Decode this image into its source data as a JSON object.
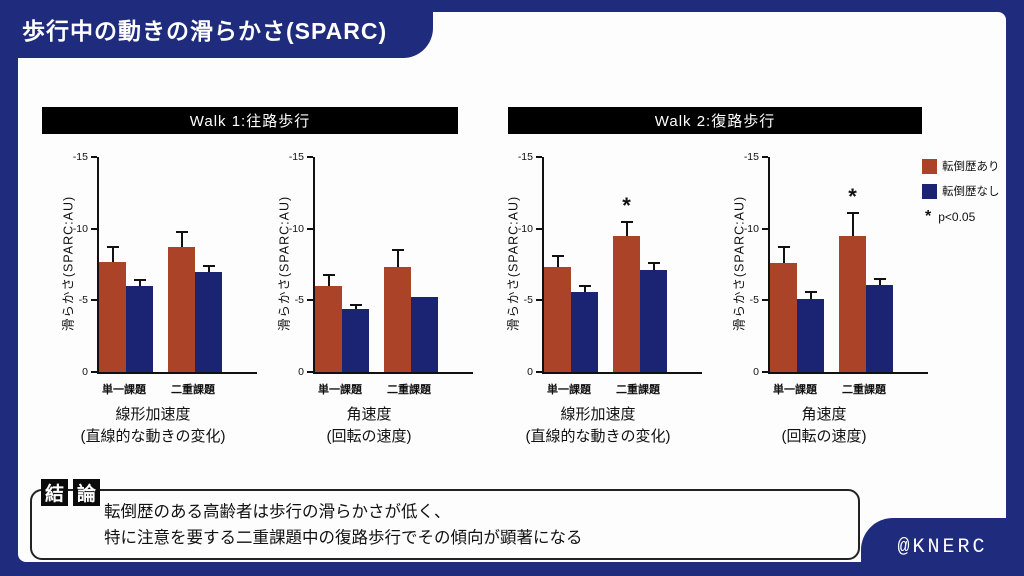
{
  "slide_title": "歩行中の動きの滑らかさ(SPARC)",
  "watermark": "@KNERC",
  "sections": [
    {
      "header": "Walk 1:往路歩行"
    },
    {
      "header": "Walk 2:復路歩行"
    }
  ],
  "legend": {
    "items": [
      {
        "label": "転倒歴あり",
        "color": "#AB4328"
      },
      {
        "label": "転倒歴なし",
        "color": "#1A2472"
      }
    ],
    "sig_symbol": "*",
    "sig_label": "p<0.05"
  },
  "conclusion": {
    "badge_chars": [
      "結",
      "論"
    ],
    "lines": [
      "転倒歴のある高齢者は歩行の滑らかさが低く、",
      "特に注意を要する二重課題中の復路歩行でその傾向が顕著になる"
    ]
  },
  "colors": {
    "frame_navy": "#1F2B7C",
    "bar_red": "#AB4328",
    "bar_blue": "#1A2472",
    "header_black": "#000000"
  },
  "chart_data": [
    {
      "type": "bar",
      "section": "Walk 1:往路歩行",
      "title": "線形加速度",
      "subtitle": "(直線的な動きの変化)",
      "ylabel": "滑らかさ(SPARC:AU)",
      "ylim": [
        0,
        -15
      ],
      "yticks": [
        0,
        -5,
        -10,
        -15
      ],
      "categories": [
        "単一課題",
        "二重課題"
      ],
      "series": [
        {
          "name": "転倒歴あり",
          "values": [
            -7.7,
            -8.7
          ],
          "errors": [
            1.0,
            1.1
          ]
        },
        {
          "name": "転倒歴なし",
          "values": [
            -6.0,
            -7.0
          ],
          "errors": [
            0.45,
            0.4
          ]
        }
      ],
      "significance": [
        "",
        ""
      ]
    },
    {
      "type": "bar",
      "section": "Walk 1:往路歩行",
      "title": "角速度",
      "subtitle": "(回転の速度)",
      "ylabel": "滑らかさ(SPARC:AU)",
      "ylim": [
        0,
        -15
      ],
      "yticks": [
        0,
        -5,
        -10,
        -15
      ],
      "categories": [
        "単一課題",
        "二重課題"
      ],
      "series": [
        {
          "name": "転倒歴あり",
          "values": [
            -6.0,
            -7.3
          ],
          "errors": [
            0.8,
            1.2
          ]
        },
        {
          "name": "転倒歴なし",
          "values": [
            -4.4,
            -5.2
          ],
          "errors": [
            0.3,
            0
          ]
        }
      ],
      "significance": [
        "",
        ""
      ]
    },
    {
      "type": "bar",
      "section": "Walk 2:復路歩行",
      "title": "線形加速度",
      "subtitle": "(直線的な動きの変化)",
      "ylabel": "滑らかさ(SPARC:AU)",
      "ylim": [
        0,
        -15
      ],
      "yticks": [
        0,
        -5,
        -10,
        -15
      ],
      "categories": [
        "単一課題",
        "二重課題"
      ],
      "series": [
        {
          "name": "転倒歴あり",
          "values": [
            -7.3,
            -9.5
          ],
          "errors": [
            0.8,
            1.0
          ]
        },
        {
          "name": "転倒歴なし",
          "values": [
            -5.6,
            -7.1
          ],
          "errors": [
            0.4,
            0.5
          ]
        }
      ],
      "significance": [
        "",
        "*"
      ]
    },
    {
      "type": "bar",
      "section": "Walk 2:復路歩行",
      "title": "角速度",
      "subtitle": "(回転の速度)",
      "ylabel": "滑らかさ(SPARC:AU)",
      "ylim": [
        0,
        -15
      ],
      "yticks": [
        0,
        -5,
        -10,
        -15
      ],
      "categories": [
        "単一課題",
        "二重課題"
      ],
      "series": [
        {
          "name": "転倒歴あり",
          "values": [
            -7.6,
            -9.5
          ],
          "errors": [
            1.1,
            1.6
          ]
        },
        {
          "name": "転倒歴なし",
          "values": [
            -5.1,
            -6.1
          ],
          "errors": [
            0.45,
            0.4
          ]
        }
      ],
      "significance": [
        "",
        "*"
      ]
    }
  ]
}
